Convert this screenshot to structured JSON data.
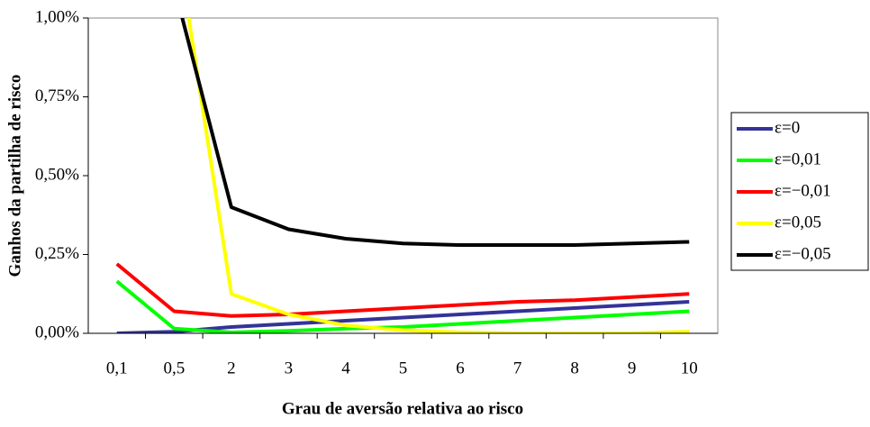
{
  "chart_data": {
    "type": "line",
    "xlabel": "Grau de aversão relativa ao risco",
    "ylabel": "Ganhos  da partilha de risco",
    "categories": [
      "0,1",
      "0,5",
      "2",
      "3",
      "4",
      "5",
      "6",
      "7",
      "8",
      "9",
      "10"
    ],
    "ylim": [
      0,
      1
    ],
    "yticks": [
      {
        "value": 0,
        "label": "0,00%"
      },
      {
        "value": 0.25,
        "label": "0,25%"
      },
      {
        "value": 0.5,
        "label": "0,50%"
      },
      {
        "value": 0.75,
        "label": "0,75%"
      },
      {
        "value": 1,
        "label": "1,00%"
      }
    ],
    "legend": "right",
    "series": [
      {
        "name": "ε=0",
        "color": "#333399",
        "values": [
          0,
          0.005,
          0.02,
          0.03,
          0.04,
          0.05,
          0.06,
          0.07,
          0.08,
          0.09,
          0.1
        ]
      },
      {
        "name": "ε=0,01",
        "color": "#00ff00",
        "values": [
          0.165,
          0.015,
          0.003,
          0.008,
          0.015,
          0.02,
          0.03,
          0.04,
          0.05,
          0.06,
          0.07
        ]
      },
      {
        "name": "ε=−0,01",
        "color": "#ff0000",
        "values": [
          0.22,
          0.07,
          0.055,
          0.06,
          0.07,
          0.08,
          0.09,
          0.1,
          0.105,
          0.115,
          0.125
        ]
      },
      {
        "name": "ε=0,05",
        "color": "#ffff00",
        "values": [
          null,
          1.3,
          0.125,
          0.06,
          0.025,
          0.01,
          0.003,
          0,
          0,
          0,
          0.005
        ]
      },
      {
        "name": "ε=−0,05",
        "color": "#000000",
        "values": [
          null,
          1.1,
          0.4,
          0.33,
          0.3,
          0.285,
          0.28,
          0.28,
          0.28,
          0.285,
          0.29
        ]
      }
    ]
  }
}
